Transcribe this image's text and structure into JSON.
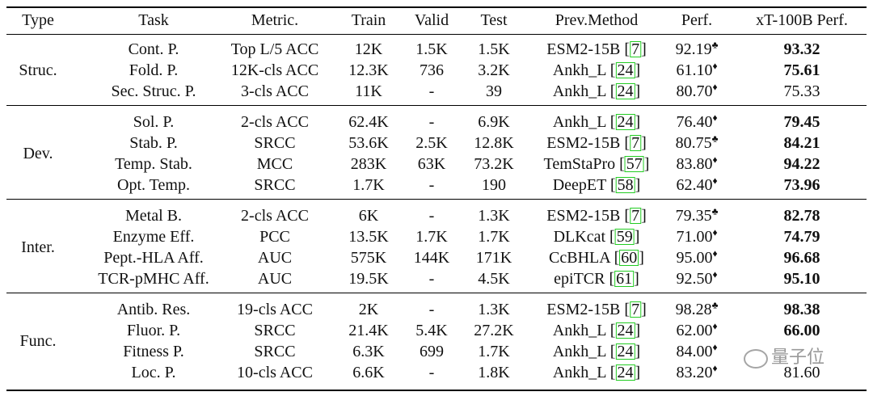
{
  "headers": [
    "Type",
    "Task",
    "Metric.",
    "Train",
    "Valid",
    "Test",
    "Prev.Method",
    "Perf.",
    "xT-100B Perf."
  ],
  "groups": [
    {
      "type": "Struc.",
      "rows": [
        {
          "task": "Cont. P.",
          "metric": "Top L/5 ACC",
          "train": "12K",
          "valid": "1.5K",
          "test": "1.5K",
          "method": "ESM2-15B",
          "cite": "7",
          "perf": "92.19",
          "mark": "♣",
          "xt": "93.32",
          "xt_bold": true
        },
        {
          "task": "Fold. P.",
          "metric": "12K-cls ACC",
          "train": "12.3K",
          "valid": "736",
          "test": "3.2K",
          "method": "Ankh_L",
          "cite": "24",
          "perf": "61.10",
          "mark": "♦",
          "xt": "75.61",
          "xt_bold": true
        },
        {
          "task": "Sec. Struc. P.",
          "metric": "3-cls ACC",
          "train": "11K",
          "valid": "-",
          "test": "39",
          "method": "Ankh_L",
          "cite": "24",
          "perf": "80.70",
          "mark": "♦",
          "xt": "75.33",
          "xt_bold": false
        }
      ]
    },
    {
      "type": "Dev.",
      "rows": [
        {
          "task": "Sol. P.",
          "metric": "2-cls ACC",
          "train": "62.4K",
          "valid": "-",
          "test": "6.9K",
          "method": "Ankh_L",
          "cite": "24",
          "perf": "76.40",
          "mark": "♦",
          "xt": "79.45",
          "xt_bold": true
        },
        {
          "task": "Stab. P.",
          "metric": "SRCC",
          "train": "53.6K",
          "valid": "2.5K",
          "test": "12.8K",
          "method": "ESM2-15B",
          "cite": "7",
          "perf": "80.75",
          "mark": "♣",
          "xt": "84.21",
          "xt_bold": true
        },
        {
          "task": "Temp. Stab.",
          "metric": "MCC",
          "train": "283K",
          "valid": "63K",
          "test": "73.2K",
          "method": "TemStaPro",
          "cite": "57",
          "perf": "83.80",
          "mark": "♦",
          "xt": "94.22",
          "xt_bold": true
        },
        {
          "task": "Opt. Temp.",
          "metric": "SRCC",
          "train": "1.7K",
          "valid": "-",
          "test": "190",
          "method": "DeepET",
          "cite": "58",
          "perf": "62.40",
          "mark": "♦",
          "xt": "73.96",
          "xt_bold": true
        }
      ]
    },
    {
      "type": "Inter.",
      "rows": [
        {
          "task": "Metal B.",
          "metric": "2-cls ACC",
          "train": "6K",
          "valid": "-",
          "test": "1.3K",
          "method": "ESM2-15B",
          "cite": "7",
          "perf": "79.35",
          "mark": "♣",
          "xt": "82.78",
          "xt_bold": true
        },
        {
          "task": "Enzyme Eff.",
          "metric": "PCC",
          "train": "13.5K",
          "valid": "1.7K",
          "test": "1.7K",
          "method": "DLKcat",
          "cite": "59",
          "perf": "71.00",
          "mark": "♦",
          "xt": "74.79",
          "xt_bold": true
        },
        {
          "task": "Pept.-HLA Aff.",
          "metric": "AUC",
          "train": "575K",
          "valid": "144K",
          "test": "171K",
          "method": "CcBHLA",
          "cite": "60",
          "perf": "95.00",
          "mark": "♦",
          "xt": "96.68",
          "xt_bold": true
        },
        {
          "task": "TCR-pMHC Aff.",
          "metric": "AUC",
          "train": "19.5K",
          "valid": "-",
          "test": "4.5K",
          "method": "epiTCR",
          "cite": "61",
          "perf": "92.50",
          "mark": "♦",
          "xt": "95.10",
          "xt_bold": true
        }
      ]
    },
    {
      "type": "Func.",
      "rows": [
        {
          "task": "Antib. Res.",
          "metric": "19-cls ACC",
          "train": "2K",
          "valid": "-",
          "test": "1.3K",
          "method": "ESM2-15B",
          "cite": "7",
          "perf": "98.28",
          "mark": "♣",
          "xt": "98.38",
          "xt_bold": true
        },
        {
          "task": "Fluor. P.",
          "metric": "SRCC",
          "train": "21.4K",
          "valid": "5.4K",
          "test": "27.2K",
          "method": "Ankh_L",
          "cite": "24",
          "perf": "62.00",
          "mark": "♦",
          "xt": "66.00",
          "xt_bold": true
        },
        {
          "task": "Fitness P.",
          "metric": "SRCC",
          "train": "6.3K",
          "valid": "699",
          "test": "1.7K",
          "method": "Ankh_L",
          "cite": "24",
          "perf": "84.00",
          "mark": "♦",
          "xt": "",
          "xt_bold": true
        },
        {
          "task": "Loc. P.",
          "metric": "10-cls ACC",
          "train": "6.6K",
          "valid": "-",
          "test": "1.8K",
          "method": "Ankh_L",
          "cite": "24",
          "perf": "83.20",
          "mark": "♦",
          "xt": "81.60",
          "xt_bold": false
        }
      ]
    }
  ],
  "watermark": "量子位"
}
